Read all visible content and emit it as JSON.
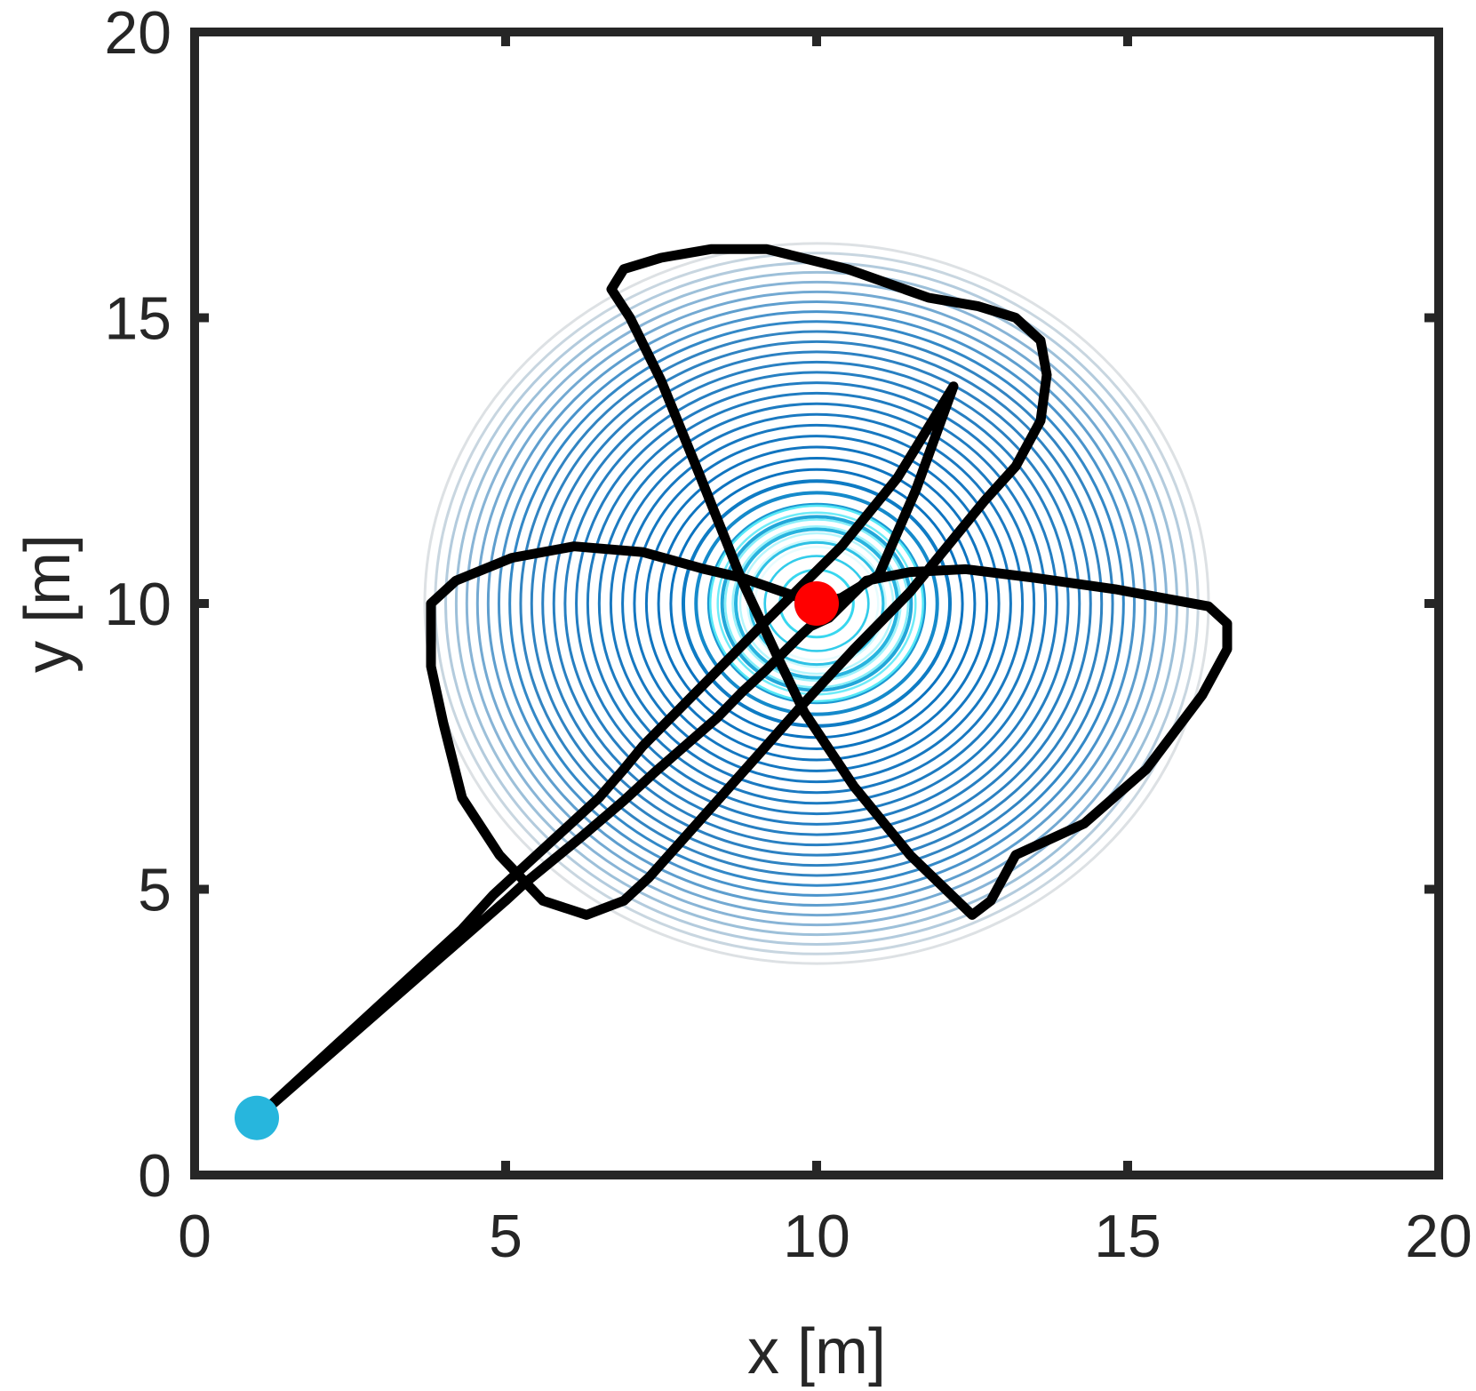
{
  "chart_data": {
    "type": "line",
    "title": "",
    "xlabel": "x [m]",
    "ylabel": "y [m]",
    "xlim": [
      0,
      20
    ],
    "ylim": [
      0,
      20
    ],
    "xticks": [
      0,
      5,
      10,
      15,
      20
    ],
    "yticks": [
      0,
      5,
      10,
      15,
      20
    ],
    "grid": false,
    "legend": "none",
    "background_field": {
      "type": "contour",
      "center": [
        10,
        10
      ],
      "outer_radius": 6.3,
      "levels": 32,
      "colors": {
        "outer": "#dde1e4",
        "mid": "#0a72c0",
        "core": "#3fe6f6"
      }
    },
    "series": [
      {
        "color": "#000000",
        "x": [
          1.0,
          2.0,
          3.0,
          4.0,
          5.0,
          5.3,
          6.2,
          6.9,
          7.4,
          8.4,
          8.8,
          9.2,
          9.75,
          9.9,
          10.2,
          10.8,
          11.5,
          12.4,
          13.5,
          14.8,
          15.8,
          16.3,
          16.6,
          16.6,
          16.2,
          15.3,
          14.3,
          13.2,
          12.8,
          12.5,
          11.5,
          10.6,
          9.8,
          9.4,
          8.8,
          8.1,
          7.5,
          7.0,
          6.7,
          6.9,
          7.5,
          8.3,
          9.2,
          10.5,
          11.8,
          12.6,
          13.2,
          13.6,
          13.7,
          13.6,
          13.2,
          12.7,
          11.5,
          10.6,
          9.75,
          9.1,
          7.3,
          6.9,
          6.3,
          5.6,
          4.9,
          4.3,
          4.0,
          3.8,
          3.8,
          4.2,
          5.1,
          6.1,
          7.2,
          8.2,
          8.8,
          9.6,
          10.0,
          10.4,
          11.0,
          11.6,
          12.2,
          11.3,
          10.4,
          9.1,
          8.2,
          7.2,
          6.9,
          6.5,
          6.0,
          5.4,
          4.8,
          4.3,
          3.9,
          1.0
        ],
        "y": [
          1.0,
          1.95,
          2.9,
          3.85,
          4.8,
          5.1,
          5.9,
          6.55,
          7.05,
          8.0,
          8.45,
          8.85,
          9.45,
          9.6,
          9.75,
          10.4,
          10.55,
          10.6,
          10.45,
          10.25,
          10.05,
          9.95,
          9.65,
          9.2,
          8.4,
          7.1,
          6.15,
          5.6,
          4.8,
          4.55,
          5.6,
          6.8,
          8.1,
          9.0,
          10.4,
          12.3,
          13.9,
          15.0,
          15.5,
          15.85,
          16.05,
          16.2,
          16.2,
          15.85,
          15.35,
          15.2,
          15.0,
          14.6,
          14.0,
          13.2,
          12.4,
          11.8,
          10.2,
          9.2,
          8.2,
          7.4,
          5.2,
          4.8,
          4.55,
          4.8,
          5.6,
          6.6,
          7.9,
          8.9,
          10.0,
          10.4,
          10.8,
          11.0,
          10.9,
          10.6,
          10.45,
          10.15,
          10.0,
          10.1,
          10.5,
          12.0,
          13.8,
          12.2,
          11.0,
          9.6,
          8.6,
          7.5,
          7.1,
          6.6,
          6.1,
          5.5,
          4.9,
          4.3,
          3.9,
          1.0
        ]
      }
    ],
    "points": [
      {
        "x": 1,
        "y": 1,
        "color": "#27b6dd"
      },
      {
        "x": 10,
        "y": 10,
        "color": "#ff0000"
      }
    ]
  }
}
